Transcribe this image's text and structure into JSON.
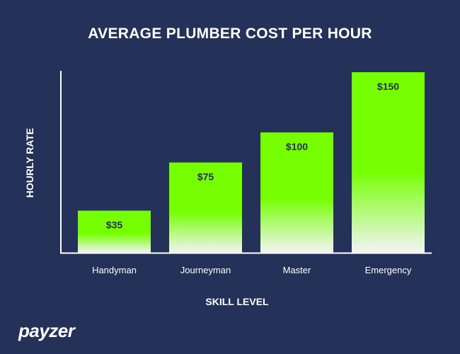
{
  "chart_data": {
    "type": "bar",
    "title": "AVERAGE PLUMBER COST PER HOUR",
    "xlabel": "SKILL LEVEL",
    "ylabel": "HOURLY RATE",
    "categories": [
      "Handyman",
      "Journeyman",
      "Master",
      "Emergency"
    ],
    "values": [
      35,
      75,
      100,
      150
    ],
    "data_labels": [
      "$35",
      "$75",
      "$100",
      "$150"
    ],
    "ylim": [
      0,
      150
    ],
    "grid": false,
    "legend": "none"
  },
  "colors": {
    "background": "#243158",
    "bar_top": "#76ff03",
    "bar_bottom": "#f4f4f6",
    "label": "#243158"
  },
  "logo": {
    "text": "payzer"
  }
}
